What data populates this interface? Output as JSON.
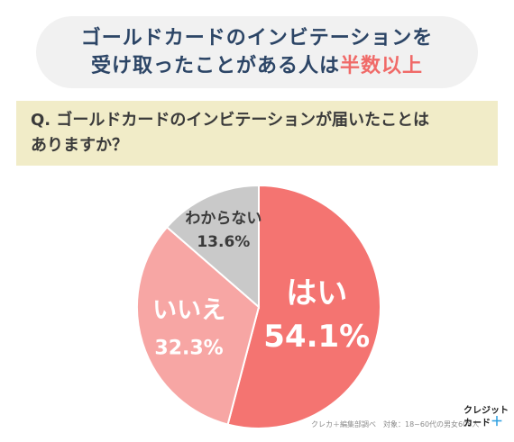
{
  "headline": {
    "line1": "ゴールドカードのインビテーションを",
    "line2_prefix": "受け取ったことがある人は",
    "line2_accent": "半数以上"
  },
  "question": {
    "line1": "Q. ゴールドカードのインビテーションが届いたことは",
    "line2": "ありますか？"
  },
  "footer": {
    "source": "クレカ＋編集部調べ　対象：18~60代の男女608人"
  },
  "logo": {
    "line1": "クレジット",
    "line2": "カード"
  },
  "colors": {
    "yes": "#f47471",
    "no": "#f7a6a4",
    "unknown": "#c9c9c9",
    "accent": "#f06a68",
    "title": "#2c4566"
  },
  "chart_data": {
    "type": "pie",
    "title": "",
    "slices": [
      {
        "label": "はい",
        "value": 54.1,
        "display": "54.1%"
      },
      {
        "label": "いいえ",
        "value": 32.3,
        "display": "32.3%"
      },
      {
        "label": "わからない",
        "value": 13.6,
        "display": "13.6%"
      }
    ],
    "start_angle": "12 o'clock",
    "direction": "clockwise"
  }
}
